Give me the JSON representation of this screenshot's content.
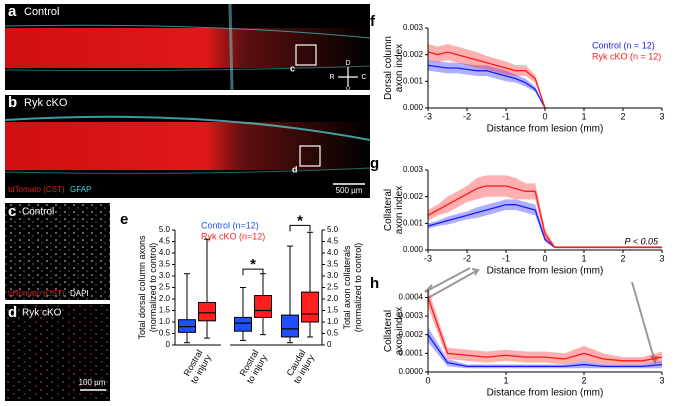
{
  "panels": {
    "a": {
      "letter": "a",
      "label": "Control",
      "inset": "c",
      "compass": [
        "D",
        "R",
        "C",
        "V"
      ]
    },
    "b": {
      "letter": "b",
      "label": "Ryk cKO",
      "inset": "d",
      "stain1": "tdTomato (CST)",
      "stain2": "GFAP",
      "scale": "500 µm"
    },
    "c": {
      "letter": "c",
      "label": "Control",
      "stain1": "tdTomato (CST)",
      "stain2": "DAPI"
    },
    "d": {
      "letter": "d",
      "label": "Ryk cKO",
      "scale": "100 µm"
    }
  },
  "chart_data": [
    {
      "type": "box",
      "panel": "e",
      "ylabel": [
        "Total dorsal column axons",
        "(normalized to control)"
      ],
      "y2label": [
        "Total axon collaterals",
        "(normalized to control)"
      ],
      "ylim": [
        0,
        5
      ],
      "yticks": [
        0,
        0.5,
        {
          "value": 1,
          "label": "1.0"
        },
        1.5,
        {
          "value": 2,
          "label": "2.0"
        },
        2.5,
        {
          "value": 3,
          "label": "3.0"
        },
        3.5,
        {
          "value": 4,
          "label": "4.0"
        },
        4.5,
        {
          "value": 5,
          "label": "5.0"
        }
      ],
      "y2lim": [
        0,
        5
      ],
      "y2ticks": [
        0,
        0.5,
        {
          "value": 1,
          "label": "1.0"
        },
        1.5,
        {
          "value": 2,
          "label": "2.0"
        },
        2.5,
        {
          "value": 3,
          "label": "3.0"
        },
        3.5,
        {
          "value": 4,
          "label": "4.0"
        },
        4.5,
        {
          "value": 5,
          "label": "5.0"
        }
      ],
      "categories": [
        [
          "Rostral",
          "to injury"
        ],
        [
          "Rostral",
          "to injury"
        ],
        [
          "Caudal",
          "to injury"
        ]
      ],
      "series": [
        {
          "name": "Control (n=12)",
          "color": "#1f4fff",
          "values": [
            [
              0.1,
              0.55,
              0.8,
              1.1,
              3.1
            ],
            [
              0.2,
              0.6,
              0.95,
              1.2,
              2.5
            ],
            [
              0.1,
              0.35,
              0.7,
              1.3,
              4.3
            ]
          ]
        },
        {
          "name": "Ryk cKO (n=12)",
          "color": "#ff1f1f",
          "values": [
            [
              0.3,
              1.05,
              1.4,
              1.85,
              4.6
            ],
            [
              0.45,
              1.2,
              1.5,
              2.15,
              3.1
            ],
            [
              0.35,
              1.0,
              1.35,
              2.3,
              4.9
            ]
          ]
        }
      ],
      "annotations": [
        "*",
        "*"
      ]
    },
    {
      "type": "line",
      "panel": "f",
      "xlabel": "Distance from lesion (mm)",
      "ylabel": [
        "Dorsal column",
        "axon index"
      ],
      "xlim": [
        -3,
        3
      ],
      "xticks": [
        -3,
        -2,
        -1,
        0,
        1,
        2,
        3
      ],
      "ylim": [
        0,
        0.003
      ],
      "yticks": [
        {
          "value": 0,
          "label": "0.000"
        },
        0.001,
        0.002,
        0.003
      ],
      "x": [
        -3,
        -2.75,
        -2.5,
        -2.25,
        -2,
        -1.75,
        -1.5,
        -1.25,
        -1,
        -0.75,
        -0.5,
        -0.25,
        0
      ],
      "legend": "right",
      "series": [
        {
          "name": "Control (n = 12)",
          "color": "#1a1aff",
          "values": [
            0.0016,
            0.00155,
            0.0015,
            0.0015,
            0.00145,
            0.0014,
            0.0014,
            0.0013,
            0.0012,
            0.0011,
            0.00095,
            0.0007,
            0
          ],
          "errors": [
            0.0002,
            0.0002,
            0.0002,
            0.0002,
            0.0002,
            0.0002,
            0.0002,
            0.0002,
            0.0002,
            0.00015,
            0.00015,
            0.0001,
            0
          ]
        },
        {
          "name": "Ryk cKO (n = 12)",
          "color": "#ff1a1a",
          "values": [
            0.0021,
            0.002,
            0.0021,
            0.002,
            0.0019,
            0.0018,
            0.0017,
            0.0016,
            0.0015,
            0.0014,
            0.0014,
            0.0011,
            0
          ],
          "errors": [
            0.0003,
            0.0003,
            0.0003,
            0.0003,
            0.0003,
            0.0003,
            0.00025,
            0.00025,
            0.00025,
            0.0002,
            0.0002,
            0.00015,
            0
          ]
        }
      ]
    },
    {
      "type": "line",
      "panel": "g",
      "xlabel": "Distance from lesion (mm)",
      "ylabel": [
        "Collateral",
        "axon index"
      ],
      "xlim": [
        -3,
        3
      ],
      "xticks": [
        -3,
        -2,
        -1,
        0,
        1,
        2,
        3
      ],
      "ylim": [
        0,
        0.003
      ],
      "yticks": [
        {
          "value": 0,
          "label": "0.000"
        },
        0.001,
        0.002,
        0.003
      ],
      "x": [
        -3,
        -2.75,
        -2.5,
        -2.25,
        -2,
        -1.75,
        -1.5,
        -1.25,
        -1,
        -0.75,
        -0.5,
        -0.25,
        0,
        0.25,
        0.5,
        0.75,
        1,
        1.25,
        1.5,
        1.75,
        2,
        2.25,
        2.5,
        2.75,
        3
      ],
      "annotation": "P < 0.05",
      "series": [
        {
          "name": "Control",
          "color": "#1a1aff",
          "values": [
            0.0009,
            0.001,
            0.0011,
            0.0012,
            0.0013,
            0.0014,
            0.0015,
            0.0016,
            0.0017,
            0.0017,
            0.0016,
            0.0015,
            0.0004,
            0.0001,
            0.0001,
            0.0001,
            0.0001,
            0.0001,
            0.0001,
            0.0001,
            0.0001,
            0.0001,
            0.0001,
            0.0001,
            0.0001
          ],
          "errors": [
            0.0001,
            0.0001,
            0.00015,
            0.00015,
            0.00015,
            0.0002,
            0.0002,
            0.0002,
            0.0002,
            0.0002,
            0.0002,
            0.0002,
            0.0001,
            3e-05,
            3e-05,
            3e-05,
            3e-05,
            3e-05,
            3e-05,
            3e-05,
            3e-05,
            3e-05,
            3e-05,
            3e-05,
            3e-05
          ]
        },
        {
          "name": "Ryk cKO",
          "color": "#ff1a1a",
          "values": [
            0.0013,
            0.0015,
            0.0017,
            0.0019,
            0.0021,
            0.0023,
            0.0024,
            0.0024,
            0.0024,
            0.0023,
            0.0022,
            0.0022,
            0.0006,
            0.0001,
            0.0001,
            0.0001,
            0.0001,
            0.0001,
            0.0001,
            0.0001,
            0.0001,
            0.0001,
            0.0001,
            0.0001,
            0.0001
          ],
          "errors": [
            0.0002,
            0.0002,
            0.0003,
            0.0003,
            0.0003,
            0.0004,
            0.0004,
            0.0004,
            0.0004,
            0.0004,
            0.0003,
            0.0003,
            0.0002,
            4e-05,
            4e-05,
            4e-05,
            4e-05,
            4e-05,
            4e-05,
            4e-05,
            4e-05,
            4e-05,
            4e-05,
            4e-05,
            4e-05
          ]
        }
      ]
    },
    {
      "type": "line",
      "panel": "h",
      "xlabel": "Distance from lesion (mm)",
      "ylabel": [
        "Collateral",
        "axon index"
      ],
      "xlim": [
        0,
        3
      ],
      "xticks": [
        0,
        1,
        2,
        3
      ],
      "ylim": [
        0,
        0.00044
      ],
      "yticks": [
        {
          "value": 0,
          "label": "0.0000"
        },
        0.0001,
        0.0002,
        0.0003,
        0.0004
      ],
      "x": [
        0,
        0.25,
        0.5,
        0.75,
        1,
        1.25,
        1.5,
        1.75,
        2,
        2.25,
        2.5,
        2.75,
        3
      ],
      "series": [
        {
          "name": "Control",
          "color": "#1a1aff",
          "values": [
            0.0002,
            5e-05,
            3e-05,
            3e-05,
            3e-05,
            3e-05,
            3e-05,
            3e-05,
            4e-05,
            3e-05,
            3e-05,
            3e-05,
            4e-05
          ],
          "errors": [
            4e-05,
            2e-05,
            1e-05,
            1e-05,
            1e-05,
            1e-05,
            1e-05,
            1e-05,
            2e-05,
            1e-05,
            1e-05,
            1e-05,
            2e-05
          ]
        },
        {
          "name": "Ryk cKO",
          "color": "#ff1a1a",
          "values": [
            0.0004,
            0.0001,
            9e-05,
            8e-05,
            9e-05,
            8e-05,
            8e-05,
            7e-05,
            0.0001,
            7e-05,
            6e-05,
            6e-05,
            8e-05
          ],
          "errors": [
            5e-05,
            3e-05,
            3e-05,
            3e-05,
            3e-05,
            3e-05,
            3e-05,
            3e-05,
            4e-05,
            3e-05,
            2e-05,
            2e-05,
            3e-05
          ]
        }
      ]
    }
  ]
}
